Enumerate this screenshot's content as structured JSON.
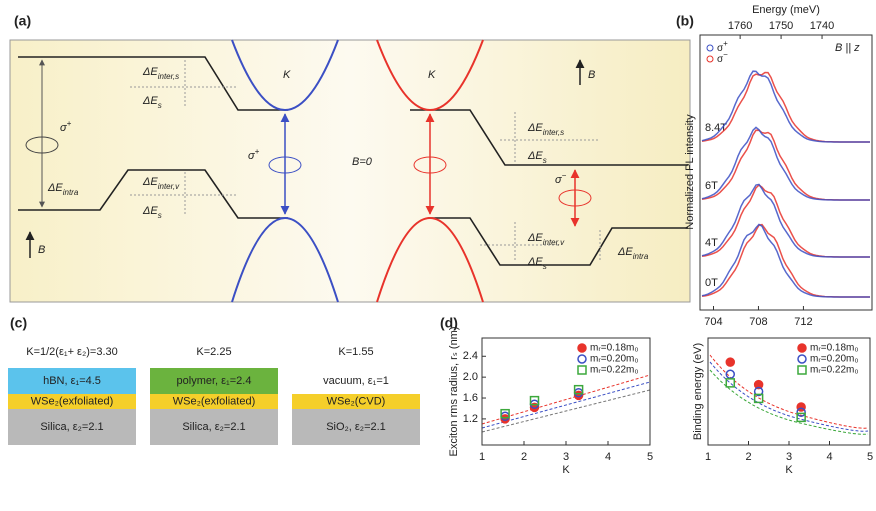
{
  "panel_a": {
    "label": "(a)",
    "labels": [
      {
        "main": "ΔE",
        "sub": "inter,s"
      },
      {
        "main": "ΔE",
        "sub": "s"
      },
      {
        "main": "σ",
        "sup": "+"
      },
      {
        "main": "ΔE",
        "sub": "intra"
      },
      {
        "main": "ΔE",
        "sub": "inter,v"
      },
      {
        "main": "ΔE",
        "sub": "s"
      },
      {
        "main": "B"
      },
      {
        "main": "σ",
        "sup": "+"
      },
      {
        "main": "K"
      },
      {
        "main": "B=0"
      },
      {
        "main": "K"
      },
      {
        "main": "B"
      },
      {
        "main": "ΔE",
        "sub": "inter,s"
      },
      {
        "main": "ΔE",
        "sub": "s"
      },
      {
        "main": "σ",
        "sup": "−"
      },
      {
        "main": "ΔE",
        "sub": "inter,v"
      },
      {
        "main": "ΔE",
        "sub": "s"
      },
      {
        "main": "ΔE",
        "sub": "intra"
      }
    ]
  },
  "panel_b": {
    "label": "(b)",
    "top_axis_label": "Energy (meV)",
    "y_label": "Normalized PL intensity",
    "xlim": [
      702.8,
      718.1
    ],
    "xticks": [
      704,
      708,
      712
    ],
    "x2lim": [
      1769.8,
      1727.8
    ],
    "x2ticks": [
      1760,
      1750,
      1740
    ],
    "legend": [
      {
        "main": "σ",
        "sup": "+",
        "color": "#3b4fc4"
      },
      {
        "main": "σ",
        "sup": "−",
        "color": "#e8332b"
      }
    ],
    "field_note": "B || z",
    "fields": [
      "8.4T",
      "6T",
      "4T",
      "0T"
    ]
  },
  "panel_c": {
    "label": "(c)",
    "columns": [
      {
        "header": "K=1/2(ε₁+ ε₂)=3.30",
        "layers": [
          {
            "text": "hBN, ε₁=4.5",
            "color": "#5bc3ec"
          },
          {
            "text": "WSe₂(exfoliated)",
            "color": "#f5cf2a"
          },
          {
            "text": "Silica, ε₂=2.1",
            "color": "#b9b9b9"
          }
        ]
      },
      {
        "header": "K=2.25",
        "layers": [
          {
            "text": "polymer, ε₁=2.4",
            "color": "#6bb33e"
          },
          {
            "text": "WSe₂(exfoliated)",
            "color": "#f5cf2a"
          },
          {
            "text": "Silica, ε₂=2.1",
            "color": "#b9b9b9"
          }
        ]
      },
      {
        "header": "K=1.55",
        "layers": [
          {
            "text": "vacuum, ε₁=1",
            "color": "#ffffff"
          },
          {
            "text": "WSe₂(CVD)",
            "color": "#f5cf2a"
          },
          {
            "text": "SiO₂, ε₂=2.1",
            "color": "#b9b9b9"
          }
        ]
      }
    ]
  },
  "panel_d": {
    "label": "(d)",
    "charts": [
      {
        "type": "scatter",
        "y_label": "Exciton rms radius, rₛ (nm)",
        "x_label": "K",
        "xlim": [
          1,
          5
        ],
        "xticks": [
          1,
          2,
          3,
          4,
          5
        ],
        "ylim": [
          0.7,
          2.75
        ],
        "yticks": [
          1.2,
          1.6,
          {
            "value": 2,
            "label": "2.0"
          },
          2.4
        ],
        "x": [
          1.55,
          2.25,
          3.3
        ],
        "series": [
          {
            "name": "mᵣ=0.18m₀",
            "color": "#e8332b",
            "marker": "filled-circle",
            "values": [
              1.2,
              1.42,
              1.65
            ]
          },
          {
            "name": "mᵣ=0.20m₀",
            "color": "#3b4fc4",
            "marker": "circle",
            "values": [
              1.25,
              1.48,
              1.7
            ]
          },
          {
            "name": "mᵣ=0.22m₀",
            "color": "#3ca83c",
            "marker": "square",
            "values": [
              1.3,
              1.55,
              1.76
            ]
          }
        ]
      },
      {
        "type": "scatter",
        "y_label": "Binding energy (eV)",
        "x_label": "K",
        "xlim": [
          1,
          5
        ],
        "xticks": [
          1,
          2,
          3,
          4,
          5
        ],
        "ylim": [
          0,
          0.62
        ],
        "x": [
          1.55,
          2.25,
          3.3
        ],
        "series": [
          {
            "name": "mᵣ=0.18m₀",
            "color": "#e8332b",
            "marker": "filled-circle",
            "values": [
              0.48,
              0.35,
              0.22
            ]
          },
          {
            "name": "mᵣ=0.20m₀",
            "color": "#3b4fc4",
            "marker": "circle",
            "values": [
              0.41,
              0.31,
              0.19
            ]
          },
          {
            "name": "mᵣ=0.22m₀",
            "color": "#3ca83c",
            "marker": "square",
            "values": [
              0.36,
              0.27,
              0.16
            ]
          }
        ]
      }
    ]
  }
}
